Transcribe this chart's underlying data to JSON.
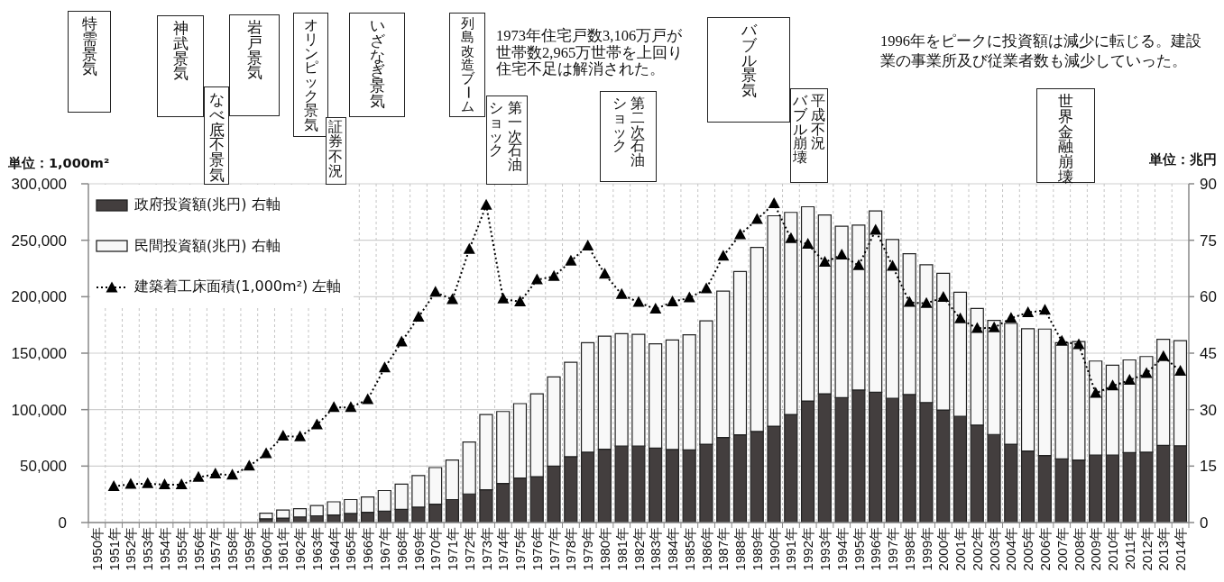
{
  "chart_data": {
    "type": "bar",
    "ylabel": "単位：1,000m²",
    "y2label": "単位：兆円",
    "annotations": [
      "特需景気",
      "神武景気",
      "なべ底不景気",
      "岩戸景気",
      "オリンピック景気",
      "証券不況",
      "いざなぎ景気",
      "列島改造ブーム",
      "第一次石油",
      "ショック",
      "1973年住宅戸数3,106万戸が世帯数2,965万世帯を上回り住宅不足は解消された。",
      "第二次石油",
      "ショック",
      "バブル景気",
      "平成不況",
      "バブル崩壊",
      "1996年をピークに投資額は減少に転じる。建設業の事業所及び従業者数も減少していった。",
      "世界金融崩壊"
    ],
    "categories": [
      "1950年",
      "1951年",
      "1952年",
      "1953年",
      "1954年",
      "1955年",
      "1956年",
      "1957年",
      "1958年",
      "1959年",
      "1960年",
      "1961年",
      "1962年",
      "1963年",
      "1964年",
      "1965年",
      "1966年",
      "1967年",
      "1968年",
      "1969年",
      "1970年",
      "1971年",
      "1972年",
      "1973年",
      "1974年",
      "1975年",
      "1976年",
      "1977年",
      "1978年",
      "1979年",
      "1980年",
      "1981年",
      "1982年",
      "1983年",
      "1984年",
      "1985年",
      "1986年",
      "1987年",
      "1988年",
      "1989年",
      "1990年",
      "1991年",
      "1992年",
      "1993年",
      "1994年",
      "1995年",
      "1996年",
      "1997年",
      "1998年",
      "1999年",
      "2000年",
      "2001年",
      "2002年",
      "2003年",
      "2004年",
      "2005年",
      "2006年",
      "2007年",
      "2008年",
      "2009年",
      "2010年",
      "2011年",
      "2012年",
      "2013年",
      "2014年"
    ],
    "series": [
      {
        "name": "政府投資額(兆円) 右軸",
        "color": "#433e3e",
        "axis": "y2",
        "values": [
          null,
          null,
          null,
          null,
          null,
          null,
          null,
          null,
          null,
          null,
          1.0,
          1.2,
          1.5,
          1.8,
          2.0,
          2.4,
          2.7,
          3.0,
          3.5,
          4.1,
          4.9,
          6.1,
          7.6,
          8.7,
          10.4,
          11.8,
          12.2,
          15.0,
          17.5,
          18.7,
          19.5,
          20.3,
          20.3,
          19.8,
          19.4,
          19.3,
          20.8,
          22.6,
          23.3,
          24.2,
          25.6,
          28.7,
          32.3,
          34.2,
          33.2,
          35.2,
          34.6,
          33.0,
          34.0,
          31.9,
          29.9,
          28.2,
          25.9,
          23.4,
          20.8,
          19.0,
          17.8,
          16.9,
          16.6,
          17.9,
          17.9,
          18.6,
          18.7,
          20.5,
          20.4
        ]
      },
      {
        "name": "民間投資額(兆円) 右軸",
        "color": "#f8f8f8",
        "axis": "y2",
        "values": [
          null,
          null,
          null,
          null,
          null,
          null,
          null,
          null,
          null,
          null,
          1.5,
          2.1,
          2.2,
          2.7,
          3.5,
          3.7,
          4.1,
          5.5,
          6.7,
          8.4,
          9.7,
          10.5,
          13.8,
          20.0,
          19.1,
          19.8,
          22.0,
          23.7,
          25.1,
          29.1,
          30.0,
          29.9,
          29.7,
          27.7,
          29.1,
          30.6,
          32.8,
          38.9,
          43.4,
          48.9,
          55.9,
          53.7,
          51.6,
          47.5,
          45.5,
          43.8,
          48.2,
          42.2,
          37.4,
          36.6,
          36.3,
          33.0,
          31.0,
          30.3,
          32.1,
          32.5,
          33.6,
          30.9,
          31.5,
          25.0,
          23.9,
          24.6,
          25.4,
          28.2,
          27.9
        ]
      },
      {
        "name": "建築着工床面積(1,000m²) 左軸",
        "type": "line",
        "color": "#000000",
        "values": [
          null,
          32000,
          34000,
          34500,
          33500,
          33500,
          40000,
          43000,
          42000,
          50000,
          61000,
          76500,
          76000,
          86500,
          102000,
          102000,
          109000,
          137000,
          160000,
          182000,
          204000,
          197500,
          242000,
          281000,
          198000,
          195500,
          215000,
          218000,
          231500,
          245000,
          220000,
          202000,
          195000,
          189000,
          195500,
          199000,
          207000,
          236000,
          255000,
          268500,
          282500,
          251500,
          246500,
          230500,
          237000,
          227500,
          259000,
          227000,
          195000,
          194000,
          199500,
          180500,
          172000,
          172500,
          181000,
          186000,
          188000,
          160500,
          157500,
          114500,
          121000,
          126000,
          132000,
          147000,
          134000
        ]
      }
    ],
    "stacked": true,
    "marker": "triangle",
    "line_style": "dotted",
    "ylim": [
      0,
      300000
    ],
    "yticks": [
      0,
      {
        "value": 50000,
        "label": "50,000"
      },
      {
        "value": 100000,
        "label": "100,000"
      },
      {
        "value": 150000,
        "label": "150,000"
      },
      {
        "value": 200000,
        "label": "200,000"
      },
      {
        "value": 250000,
        "label": "250,000"
      },
      {
        "value": 300000,
        "label": "300,000"
      }
    ],
    "y2lim": [
      0,
      90
    ],
    "y2ticks": [
      0,
      15,
      30,
      45,
      60,
      75,
      90
    ],
    "grid": true,
    "legend": "top left"
  }
}
